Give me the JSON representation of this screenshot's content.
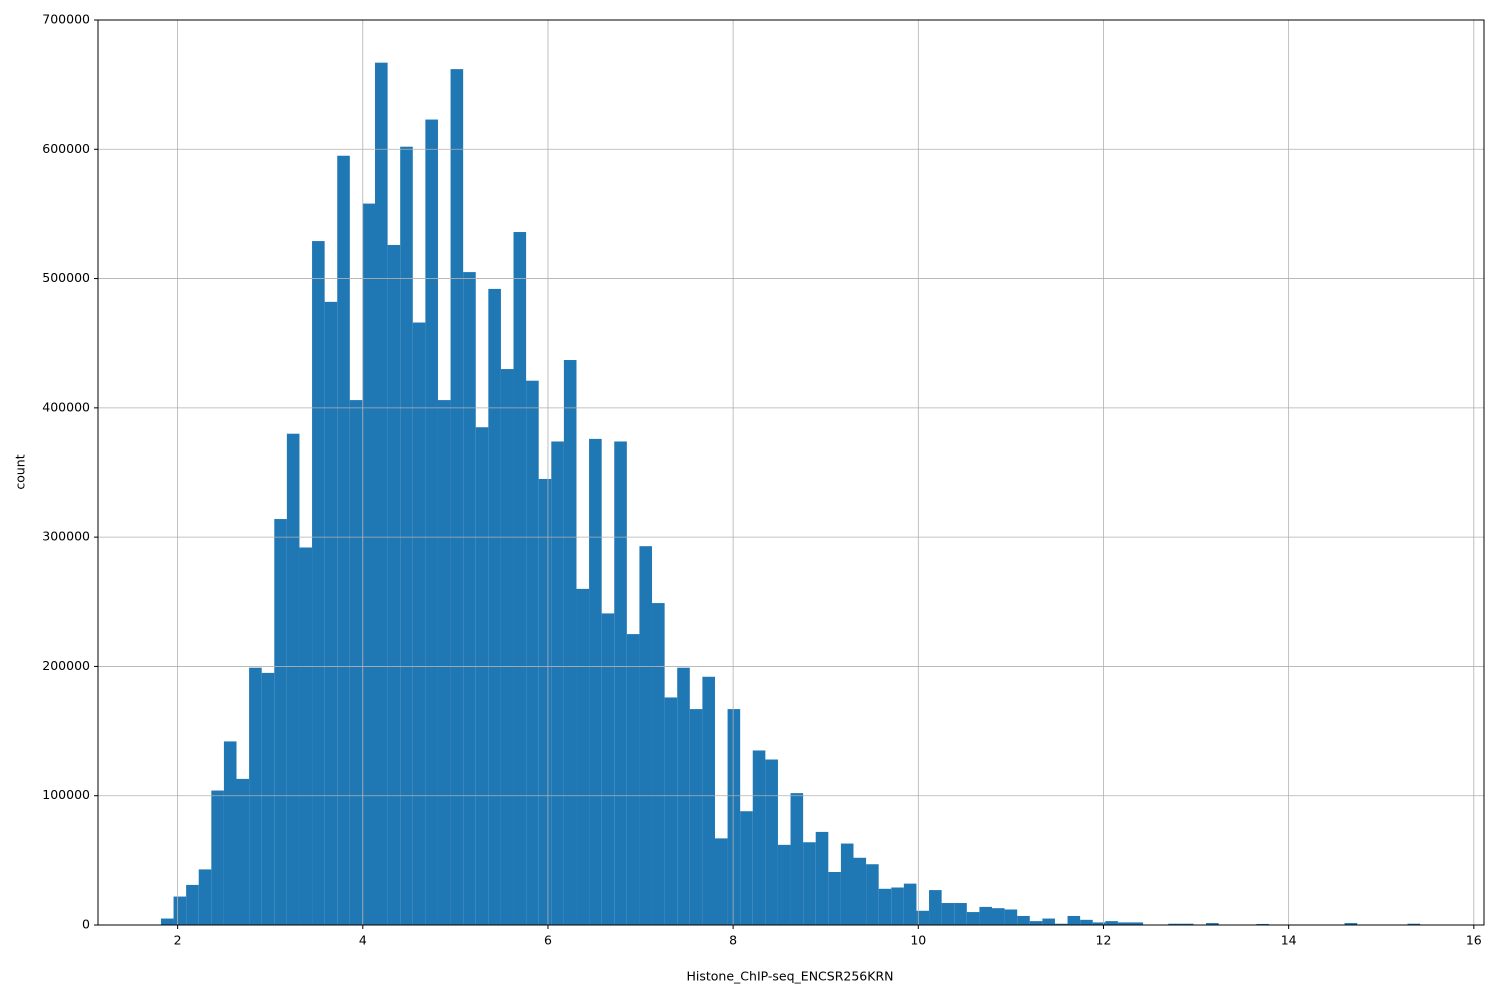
{
  "chart_data": {
    "type": "histogram",
    "xlabel": "Histone_ChIP-seq_ENCSR256KRN",
    "ylabel": "count",
    "color": "#1f77b4",
    "grid": true,
    "bins": [
      1.82,
      1.956,
      2.092,
      2.228,
      2.364,
      2.5,
      2.636,
      2.772,
      2.908,
      3.044,
      3.18,
      3.316,
      3.452,
      3.588,
      3.724,
      3.86,
      3.996,
      4.132,
      4.268,
      4.404,
      4.54,
      4.676,
      4.812,
      4.948,
      5.084,
      5.22,
      5.356,
      5.492,
      5.628,
      5.764,
      5.9,
      6.036,
      6.172,
      6.308,
      6.444,
      6.58,
      6.716,
      6.852,
      6.988,
      7.124,
      7.26,
      7.396,
      7.532,
      7.668,
      7.804,
      7.94,
      8.076,
      8.212,
      8.348,
      8.484,
      8.62,
      8.756,
      8.892,
      9.028,
      9.164,
      9.3,
      9.436,
      9.572,
      9.708,
      9.844,
      9.98,
      10.116,
      10.252,
      10.388,
      10.524,
      10.66,
      10.796,
      10.932,
      11.068,
      11.204,
      11.34,
      11.476,
      11.612,
      11.748,
      11.884,
      12.02,
      12.156,
      12.292,
      12.428,
      12.564,
      12.7,
      12.836,
      12.972,
      13.108,
      13.244,
      13.38,
      13.516,
      13.652,
      13.788,
      13.924,
      14.06,
      14.196,
      14.332,
      14.468,
      14.604,
      14.74,
      14.876,
      15.012,
      15.148,
      15.284,
      15.42
    ],
    "values": [
      5000,
      22000,
      31000,
      43000,
      104000,
      142000,
      113000,
      199000,
      195000,
      314000,
      380000,
      292000,
      529000,
      482000,
      595000,
      406000,
      558000,
      667000,
      526000,
      602000,
      466000,
      623000,
      406000,
      662000,
      505000,
      385000,
      492000,
      430000,
      536000,
      421000,
      345000,
      374000,
      437000,
      260000,
      376000,
      241000,
      374000,
      225000,
      293000,
      249000,
      176000,
      199000,
      167000,
      192000,
      67000,
      167000,
      88000,
      135000,
      128000,
      62000,
      102000,
      64000,
      72000,
      41000,
      63000,
      52000,
      47000,
      28000,
      29000,
      32000,
      11000,
      27000,
      17000,
      17000,
      10000,
      14000,
      13000,
      12000,
      7000,
      3000,
      5000,
      1000,
      7000,
      4000,
      2000,
      3000,
      2000,
      2000,
      0,
      0,
      1000,
      1000,
      0,
      1500,
      0,
      0,
      0,
      800,
      0,
      0,
      0,
      0,
      0,
      0,
      1500,
      0,
      0,
      0,
      0,
      1000
    ],
    "xlim": [
      1.14,
      16.11
    ],
    "xticks": [
      2,
      4,
      6,
      8,
      10,
      12,
      14,
      16
    ],
    "ylim": [
      0,
      700000
    ],
    "yticks": [
      0,
      100000,
      200000,
      300000,
      400000,
      500000,
      600000,
      700000
    ]
  }
}
